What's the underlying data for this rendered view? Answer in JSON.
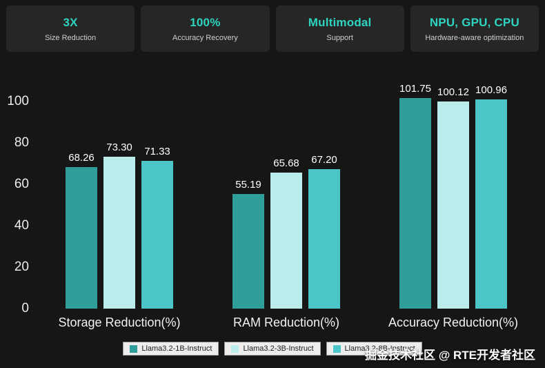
{
  "colors": {
    "background": "#161616",
    "card_background": "#262626",
    "accent": "#2dd4bf",
    "series_1": "#2f9e9b",
    "series_2": "#b9ecea",
    "series_3": "#4cc5c8"
  },
  "stats": [
    {
      "value": "3X",
      "label": "Size Reduction"
    },
    {
      "value": "100%",
      "label": "Accuracy Recovery"
    },
    {
      "value": "Multimodal",
      "label": "Support"
    },
    {
      "value": "NPU, GPU, CPU",
      "label": "Hardware-aware optimization"
    }
  ],
  "chart_data": {
    "type": "bar",
    "categories": [
      "Storage Reduction(%)",
      "RAM Reduction(%)",
      "Accuracy Reduction(%)"
    ],
    "series": [
      {
        "name": "Llama3.2-1B-Instruct",
        "color": "#2f9e9b",
        "values": [
          68.26,
          55.19,
          101.75
        ]
      },
      {
        "name": "Llama3.2-3B-Instruct",
        "color": "#b9ecea",
        "values": [
          73.3,
          65.68,
          100.12
        ]
      },
      {
        "name": "Llama3.2-8B-Instruct",
        "color": "#4cc5c8",
        "values": [
          71.33,
          67.2,
          100.96
        ]
      }
    ],
    "yticks": [
      0,
      20,
      40,
      60,
      80,
      100
    ],
    "ylim": [
      0,
      110
    ],
    "grid": false,
    "legend_position": "bottom"
  },
  "watermark": "掘金技术社区 @ RTE开发者社区"
}
